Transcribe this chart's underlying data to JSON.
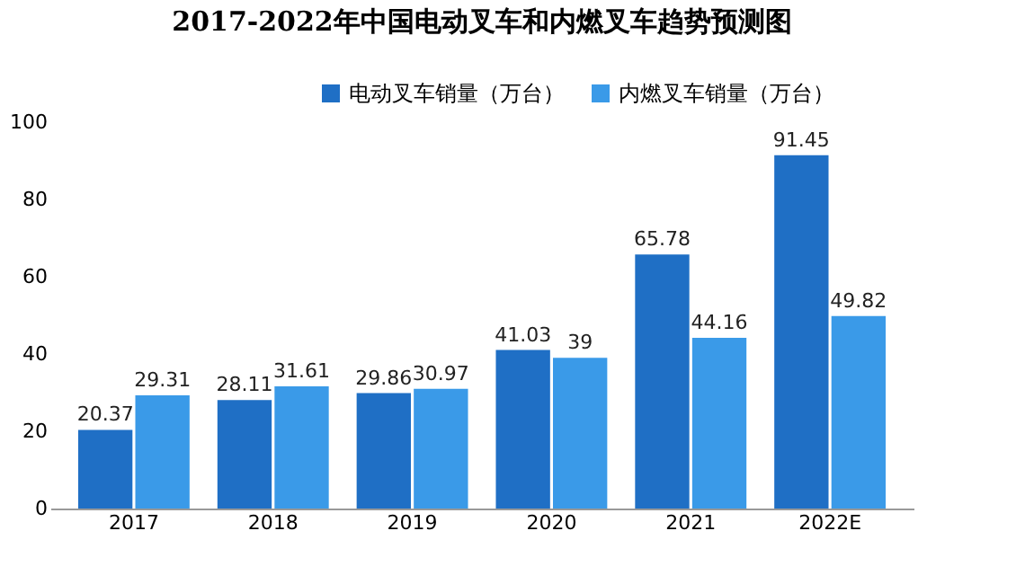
{
  "chart_data": {
    "type": "bar",
    "title": "2017-2022年中国电动叉车和内燃叉车趋势预测图",
    "categories": [
      "2017",
      "2018",
      "2019",
      "2020",
      "2021",
      "2022E"
    ],
    "series": [
      {
        "name": "电动叉车销量（万台）",
        "color": "#1f6fc5",
        "values": [
          20.37,
          28.11,
          29.86,
          41.03,
          65.78,
          91.45
        ]
      },
      {
        "name": "内燃叉车销量（万台）",
        "color": "#3a9ae8",
        "values": [
          29.31,
          31.61,
          30.97,
          39,
          44.16,
          49.82
        ]
      }
    ],
    "ylim": [
      0,
      100
    ],
    "yticks": [
      0,
      20,
      40,
      60,
      80,
      100
    ],
    "grid": false,
    "legend": "top right",
    "data_labels": true
  }
}
